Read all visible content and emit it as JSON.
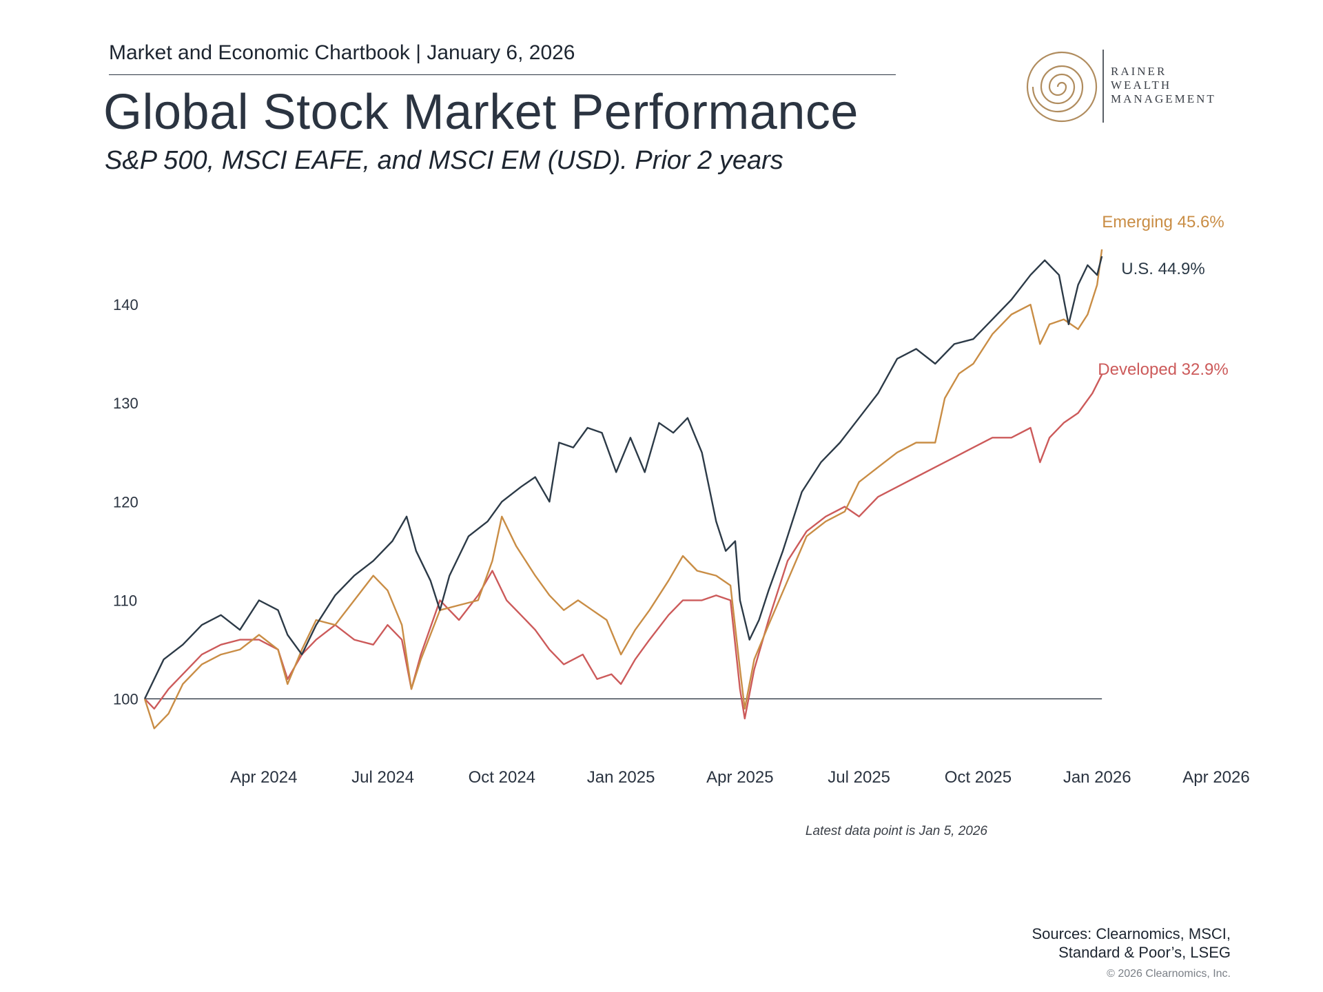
{
  "header": {
    "kicker": "Market and Economic Chartbook | January 6, 2026",
    "title": "Global Stock Market Performance",
    "subtitle": "S&P 500, MSCI EAFE, and MSCI EM (USD). Prior 2 years"
  },
  "logo": {
    "line1": "RAINER",
    "line2": "WEALTH",
    "line3": "MANAGEMENT",
    "color": "#b08c5e"
  },
  "footer": {
    "note": "Latest data point is Jan 5, 2026",
    "sources_line1": "Sources: Clearnomics, MSCI,",
    "sources_line2": "Standard & Poor’s, LSEG",
    "copyright": "© 2026 Clearnomics, Inc."
  },
  "chart_data": {
    "type": "line",
    "title": "Global Stock Market Performance",
    "xlabel": "",
    "ylabel": "",
    "xlim": [
      2024.0,
      2026.25
    ],
    "ylim": [
      95,
      147
    ],
    "yticks": [
      100,
      110,
      120,
      130,
      140
    ],
    "ytick_labels": [
      "100",
      "110",
      "120",
      "130",
      "140"
    ],
    "xticks": [
      2024.25,
      2024.5,
      2024.75,
      2025.0,
      2025.25,
      2025.5,
      2025.75,
      2026.0,
      2026.25
    ],
    "xtick_labels": [
      "Apr 2024",
      "Jul 2024",
      "Oct 2024",
      "Jan 2025",
      "Apr 2025",
      "Jul 2025",
      "Oct 2025",
      "Jan 2026",
      "Apr 2026"
    ],
    "baseline": 100,
    "grid": false,
    "series": [
      {
        "name": "U.S.",
        "label": "U.S. 44.9%",
        "color": "#2c3a47",
        "points": [
          [
            2024.0,
            100
          ],
          [
            2024.04,
            104
          ],
          [
            2024.08,
            105.5
          ],
          [
            2024.12,
            107.5
          ],
          [
            2024.16,
            108.5
          ],
          [
            2024.2,
            107
          ],
          [
            2024.24,
            110
          ],
          [
            2024.28,
            109
          ],
          [
            2024.3,
            106.5
          ],
          [
            2024.33,
            104.5
          ],
          [
            2024.36,
            107.5
          ],
          [
            2024.4,
            110.5
          ],
          [
            2024.44,
            112.5
          ],
          [
            2024.48,
            114
          ],
          [
            2024.52,
            116
          ],
          [
            2024.55,
            118.5
          ],
          [
            2024.57,
            115
          ],
          [
            2024.6,
            112
          ],
          [
            2024.62,
            109
          ],
          [
            2024.64,
            112.5
          ],
          [
            2024.68,
            116.5
          ],
          [
            2024.72,
            118
          ],
          [
            2024.75,
            120
          ],
          [
            2024.79,
            121.5
          ],
          [
            2024.82,
            122.5
          ],
          [
            2024.85,
            120
          ],
          [
            2024.87,
            126
          ],
          [
            2024.9,
            125.5
          ],
          [
            2024.93,
            127.5
          ],
          [
            2024.96,
            127
          ],
          [
            2024.99,
            123
          ],
          [
            2025.02,
            126.5
          ],
          [
            2025.05,
            123
          ],
          [
            2025.08,
            128
          ],
          [
            2025.11,
            127
          ],
          [
            2025.14,
            128.5
          ],
          [
            2025.17,
            125
          ],
          [
            2025.2,
            118
          ],
          [
            2025.22,
            115
          ],
          [
            2025.24,
            116
          ],
          [
            2025.25,
            110
          ],
          [
            2025.27,
            106
          ],
          [
            2025.29,
            108
          ],
          [
            2025.31,
            111
          ],
          [
            2025.34,
            115
          ],
          [
            2025.38,
            121
          ],
          [
            2025.42,
            124
          ],
          [
            2025.46,
            126
          ],
          [
            2025.5,
            128.5
          ],
          [
            2025.54,
            131
          ],
          [
            2025.58,
            134.5
          ],
          [
            2025.62,
            135.5
          ],
          [
            2025.66,
            134
          ],
          [
            2025.7,
            136
          ],
          [
            2025.74,
            136.5
          ],
          [
            2025.78,
            138.5
          ],
          [
            2025.82,
            140.5
          ],
          [
            2025.86,
            143
          ],
          [
            2025.89,
            144.5
          ],
          [
            2025.92,
            143
          ],
          [
            2025.94,
            138
          ],
          [
            2025.96,
            142
          ],
          [
            2025.98,
            144
          ],
          [
            2026.0,
            143
          ],
          [
            2026.01,
            144.9
          ]
        ]
      },
      {
        "name": "Emerging",
        "label": "Emerging 45.6%",
        "color": "#c98d45",
        "points": [
          [
            2024.0,
            100
          ],
          [
            2024.02,
            97
          ],
          [
            2024.05,
            98.5
          ],
          [
            2024.08,
            101.5
          ],
          [
            2024.12,
            103.5
          ],
          [
            2024.16,
            104.5
          ],
          [
            2024.2,
            105
          ],
          [
            2024.24,
            106.5
          ],
          [
            2024.28,
            105
          ],
          [
            2024.3,
            101.5
          ],
          [
            2024.33,
            105
          ],
          [
            2024.36,
            108
          ],
          [
            2024.4,
            107.5
          ],
          [
            2024.44,
            110
          ],
          [
            2024.48,
            112.5
          ],
          [
            2024.51,
            111
          ],
          [
            2024.54,
            107.5
          ],
          [
            2024.56,
            101
          ],
          [
            2024.58,
            104
          ],
          [
            2024.62,
            109
          ],
          [
            2024.66,
            109.5
          ],
          [
            2024.7,
            110
          ],
          [
            2024.73,
            114
          ],
          [
            2024.75,
            118.5
          ],
          [
            2024.78,
            115.5
          ],
          [
            2024.82,
            112.5
          ],
          [
            2024.85,
            110.5
          ],
          [
            2024.88,
            109
          ],
          [
            2024.91,
            110
          ],
          [
            2024.94,
            109
          ],
          [
            2024.97,
            108
          ],
          [
            2025.0,
            104.5
          ],
          [
            2025.03,
            107
          ],
          [
            2025.06,
            109
          ],
          [
            2025.1,
            112
          ],
          [
            2025.13,
            114.5
          ],
          [
            2025.16,
            113
          ],
          [
            2025.2,
            112.5
          ],
          [
            2025.23,
            111.5
          ],
          [
            2025.25,
            103
          ],
          [
            2025.26,
            99
          ],
          [
            2025.28,
            104
          ],
          [
            2025.31,
            107.5
          ],
          [
            2025.35,
            112
          ],
          [
            2025.39,
            116.5
          ],
          [
            2025.43,
            118
          ],
          [
            2025.47,
            119
          ],
          [
            2025.5,
            122
          ],
          [
            2025.54,
            123.5
          ],
          [
            2025.58,
            125
          ],
          [
            2025.62,
            126
          ],
          [
            2025.66,
            126
          ],
          [
            2025.68,
            130.5
          ],
          [
            2025.71,
            133
          ],
          [
            2025.74,
            134
          ],
          [
            2025.78,
            137
          ],
          [
            2025.82,
            139
          ],
          [
            2025.86,
            140
          ],
          [
            2025.88,
            136
          ],
          [
            2025.9,
            138
          ],
          [
            2025.93,
            138.5
          ],
          [
            2025.96,
            137.5
          ],
          [
            2025.98,
            139
          ],
          [
            2026.0,
            142
          ],
          [
            2026.01,
            145.6
          ]
        ]
      },
      {
        "name": "Developed",
        "label": "Developed 32.9%",
        "color": "#cc5a5a",
        "points": [
          [
            2024.0,
            100
          ],
          [
            2024.02,
            99
          ],
          [
            2024.05,
            101
          ],
          [
            2024.08,
            102.5
          ],
          [
            2024.12,
            104.5
          ],
          [
            2024.16,
            105.5
          ],
          [
            2024.2,
            106
          ],
          [
            2024.24,
            106
          ],
          [
            2024.28,
            105
          ],
          [
            2024.3,
            102
          ],
          [
            2024.33,
            104.5
          ],
          [
            2024.36,
            106
          ],
          [
            2024.4,
            107.5
          ],
          [
            2024.44,
            106
          ],
          [
            2024.48,
            105.5
          ],
          [
            2024.51,
            107.5
          ],
          [
            2024.54,
            106
          ],
          [
            2024.56,
            101
          ],
          [
            2024.58,
            104.5
          ],
          [
            2024.62,
            110
          ],
          [
            2024.66,
            108
          ],
          [
            2024.7,
            110.5
          ],
          [
            2024.73,
            113
          ],
          [
            2024.76,
            110
          ],
          [
            2024.79,
            108.5
          ],
          [
            2024.82,
            107
          ],
          [
            2024.85,
            105
          ],
          [
            2024.88,
            103.5
          ],
          [
            2024.92,
            104.5
          ],
          [
            2024.95,
            102
          ],
          [
            2024.98,
            102.5
          ],
          [
            2025.0,
            101.5
          ],
          [
            2025.03,
            104
          ],
          [
            2025.06,
            106
          ],
          [
            2025.1,
            108.5
          ],
          [
            2025.13,
            110
          ],
          [
            2025.17,
            110
          ],
          [
            2025.2,
            110.5
          ],
          [
            2025.23,
            110
          ],
          [
            2025.25,
            101
          ],
          [
            2025.26,
            98
          ],
          [
            2025.28,
            103
          ],
          [
            2025.31,
            108
          ],
          [
            2025.35,
            114
          ],
          [
            2025.39,
            117
          ],
          [
            2025.43,
            118.5
          ],
          [
            2025.47,
            119.5
          ],
          [
            2025.5,
            118.5
          ],
          [
            2025.54,
            120.5
          ],
          [
            2025.58,
            121.5
          ],
          [
            2025.62,
            122.5
          ],
          [
            2025.66,
            123.5
          ],
          [
            2025.7,
            124.5
          ],
          [
            2025.74,
            125.5
          ],
          [
            2025.78,
            126.5
          ],
          [
            2025.82,
            126.5
          ],
          [
            2025.86,
            127.5
          ],
          [
            2025.88,
            124
          ],
          [
            2025.9,
            126.5
          ],
          [
            2025.93,
            128
          ],
          [
            2025.96,
            129
          ],
          [
            2025.99,
            131
          ],
          [
            2026.01,
            132.9
          ]
        ]
      }
    ]
  }
}
